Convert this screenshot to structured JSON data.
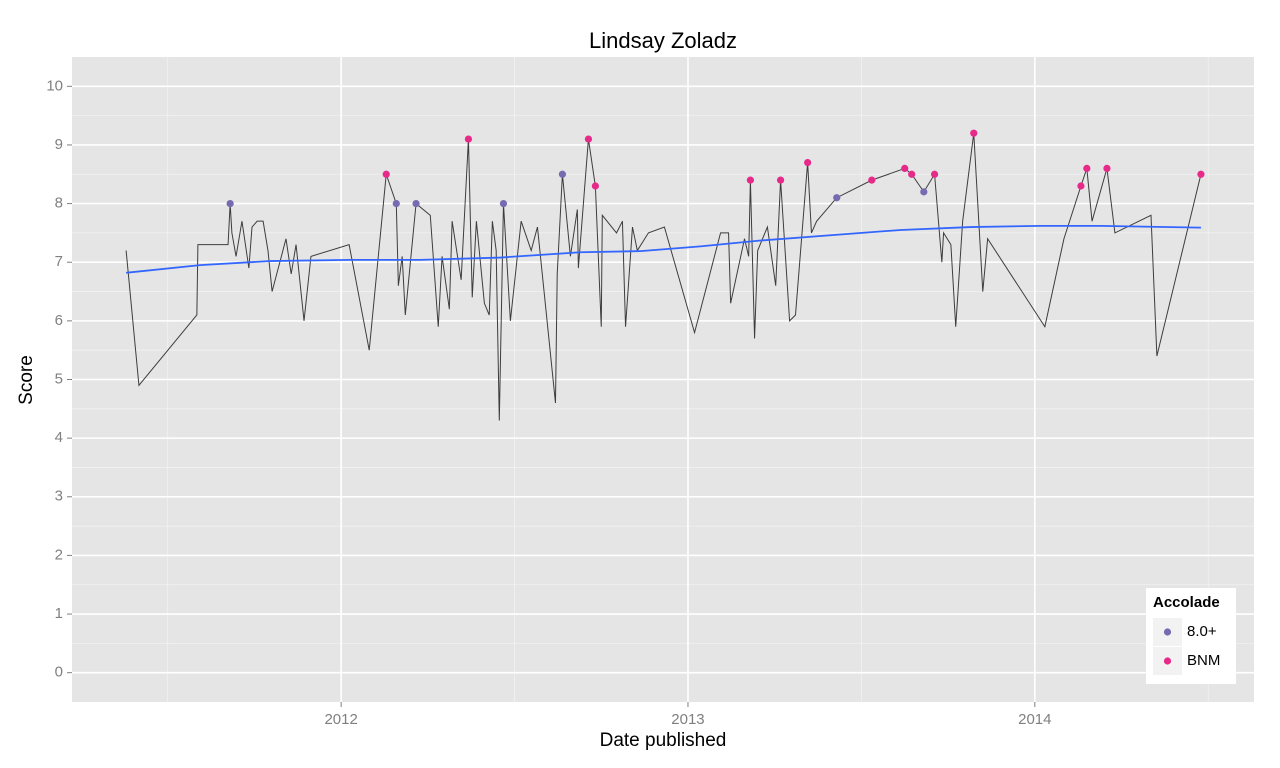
{
  "chart_data": {
    "type": "line",
    "title": "Lindsay Zoladz",
    "xlabel": "Date published",
    "ylabel": "Score",
    "legend_title": "Accolade",
    "legend_position": "bottom-right",
    "grid": true,
    "xlim": [
      2011.224,
      2014.632
    ],
    "ylim": [
      -0.5,
      10.5
    ],
    "xticks": [
      2012,
      2013,
      2014
    ],
    "yticks": [
      0,
      1,
      2,
      3,
      4,
      5,
      6,
      7,
      8,
      9,
      10
    ],
    "series": [
      {
        "type": "line",
        "color": "#3d3d3d",
        "x": [
          2011.38,
          2011.417,
          2011.584,
          2011.587,
          2011.674,
          2011.68,
          2011.685,
          2011.697,
          2011.714,
          2011.734,
          2011.743,
          2011.758,
          2011.775,
          2011.789,
          2011.801,
          2011.841,
          2011.856,
          2011.87,
          2011.893,
          2011.913,
          2012.023,
          2012.081,
          2012.13,
          2012.159,
          2012.165,
          2012.176,
          2012.185,
          2012.216,
          2012.257,
          2012.28,
          2012.291,
          2012.312,
          2012.32,
          2012.346,
          2012.367,
          2012.378,
          2012.39,
          2012.413,
          2012.427,
          2012.436,
          2012.447,
          2012.456,
          2012.468,
          2012.488,
          2012.519,
          2012.548,
          2012.566,
          2012.618,
          2012.623,
          2012.638,
          2012.661,
          2012.681,
          2012.684,
          2012.713,
          2012.733,
          2012.75,
          2012.753,
          2012.794,
          2012.811,
          2012.82,
          2012.84,
          2012.854,
          2012.886,
          2012.932,
          2013.019,
          2013.094,
          2013.117,
          2013.123,
          2013.163,
          2013.175,
          2013.18,
          2013.192,
          2013.201,
          2013.229,
          2013.253,
          2013.267,
          2013.293,
          2013.31,
          2013.345,
          2013.356,
          2013.371,
          2013.429,
          2013.53,
          2013.625,
          2013.645,
          2013.68,
          2013.711,
          2013.732,
          2013.737,
          2013.758,
          2013.772,
          2013.792,
          2013.824,
          2013.85,
          2013.864,
          2014.029,
          2014.084,
          2014.133,
          2014.15,
          2014.165,
          2014.208,
          2014.231,
          2014.335,
          2014.352,
          2014.479
        ],
        "values": [
          7.2,
          4.9,
          6.1,
          7.3,
          7.3,
          8.0,
          7.5,
          7.1,
          7.7,
          6.9,
          7.6,
          7.7,
          7.7,
          7.2,
          6.5,
          7.4,
          6.8,
          7.3,
          6.0,
          7.1,
          7.3,
          5.5,
          8.5,
          8.0,
          6.6,
          7.1,
          6.1,
          8.0,
          7.8,
          5.9,
          7.1,
          6.2,
          7.7,
          6.7,
          9.1,
          6.4,
          7.7,
          6.3,
          6.1,
          7.7,
          7.2,
          4.3,
          8.0,
          6.0,
          7.7,
          7.2,
          7.6,
          4.6,
          6.8,
          8.5,
          7.1,
          7.9,
          6.9,
          9.1,
          8.3,
          5.9,
          7.8,
          7.5,
          7.7,
          5.9,
          7.6,
          7.2,
          7.5,
          7.6,
          5.8,
          7.5,
          7.5,
          6.3,
          7.4,
          7.1,
          8.4,
          5.7,
          7.2,
          7.6,
          6.6,
          8.4,
          6.0,
          6.1,
          8.7,
          7.5,
          7.7,
          8.1,
          8.4,
          8.6,
          8.5,
          8.2,
          8.5,
          7.0,
          7.5,
          7.3,
          5.9,
          7.7,
          9.2,
          6.5,
          7.4,
          5.9,
          7.4,
          8.3,
          8.6,
          7.7,
          8.6,
          7.5,
          7.8,
          5.4,
          8.5
        ]
      },
      {
        "type": "line",
        "color": "#3366ff",
        "x": [
          2011.38,
          2011.593,
          2011.795,
          2012.026,
          2012.228,
          2012.459,
          2012.69,
          2012.863,
          2013.036,
          2013.209,
          2013.411,
          2013.613,
          2013.815,
          2014.017,
          2014.19,
          2014.479
        ],
        "values": [
          6.82,
          6.95,
          7.02,
          7.04,
          7.04,
          7.08,
          7.17,
          7.19,
          7.27,
          7.37,
          7.46,
          7.55,
          7.6,
          7.62,
          7.62,
          7.59
        ]
      },
      {
        "type": "scatter",
        "name": "8.0+",
        "color": "#756bb1",
        "x": [
          2011.68,
          2012.159,
          2012.216,
          2012.468,
          2012.638,
          2013.429,
          2013.68
        ],
        "values": [
          8.0,
          8.0,
          8.0,
          8.0,
          8.5,
          8.1,
          8.2
        ]
      },
      {
        "type": "scatter",
        "name": "BNM",
        "color": "#e7298a",
        "x": [
          2012.13,
          2012.367,
          2012.713,
          2012.733,
          2013.18,
          2013.267,
          2013.345,
          2013.53,
          2013.625,
          2013.645,
          2013.711,
          2013.824,
          2014.133,
          2014.15,
          2014.208,
          2014.479
        ],
        "values": [
          8.5,
          9.1,
          9.1,
          8.3,
          8.4,
          8.4,
          8.7,
          8.4,
          8.6,
          8.5,
          8.5,
          9.2,
          8.3,
          8.6,
          8.6,
          8.5
        ]
      }
    ]
  }
}
